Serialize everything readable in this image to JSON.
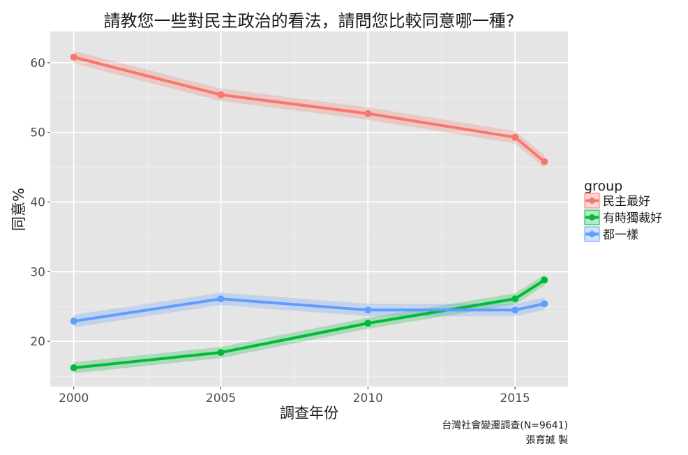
{
  "chart_data": {
    "type": "line",
    "title": "請教您一些對民主政治的看法，請問您比較同意哪一種?",
    "xlabel": "調查年份",
    "ylabel": "同意%",
    "x": [
      2000,
      2005,
      2010,
      2015,
      2016
    ],
    "xticks": [
      2000,
      2005,
      2010,
      2015
    ],
    "yticks": [
      20,
      30,
      40,
      50,
      60
    ],
    "xlim": [
      1999.2,
      2016.8
    ],
    "ylim": [
      13.5,
      64.5
    ],
    "grid": true,
    "legend_title": "group",
    "legend_position": "right",
    "series": [
      {
        "name": "民主最好",
        "color": "#F8766D",
        "values": [
          60.8,
          55.4,
          52.7,
          49.3,
          45.8
        ],
        "band": 0.9
      },
      {
        "name": "有時獨裁好",
        "color": "#00BA38",
        "values": [
          16.2,
          18.4,
          22.6,
          26.1,
          28.8
        ],
        "band": 0.8
      },
      {
        "name": "都一樣",
        "color": "#619CFF",
        "values": [
          22.9,
          26.1,
          24.5,
          24.5,
          25.4
        ],
        "band": 0.9
      }
    ],
    "caption": [
      "台灣社會變遷調查(N=9641)",
      "張育誠 製"
    ]
  }
}
